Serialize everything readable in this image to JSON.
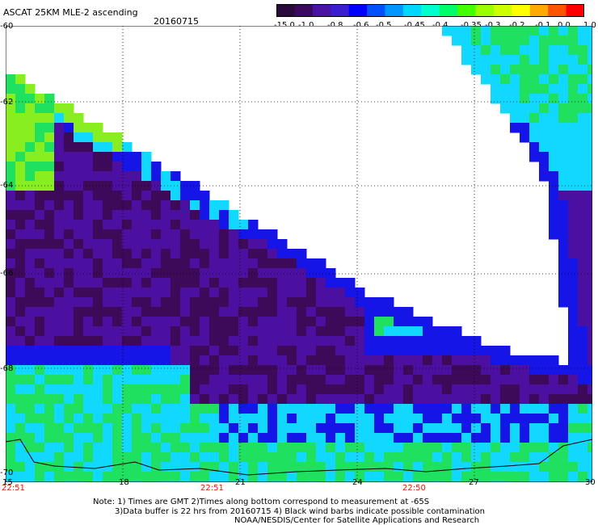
{
  "header": {
    "title": "ASCAT 25KM MLE-2 ascending",
    "date": "20160715"
  },
  "colorbar": {
    "labels": [
      "-15.0",
      "-1.0",
      "-0.8",
      "-0.6",
      "-0.5",
      "-0.45",
      "-0.4",
      "-0.35",
      "-0.3",
      "-0.2",
      "-0.1",
      "0.0",
      "1.0"
    ],
    "colors": [
      "#2a0a3a",
      "#3b0a5e",
      "#4a12a0",
      "#3a1ed0",
      "#0000ff",
      "#0050ff",
      "#0096ff",
      "#00d8ff",
      "#00ffcc",
      "#00ff66",
      "#44ff00",
      "#99ff00",
      "#ccff00",
      "#ffff00",
      "#ffaa00",
      "#ff5500",
      "#ff0000"
    ]
  },
  "axes": {
    "y_labels": [
      "-60",
      "-62",
      "-64",
      "-66",
      "-68",
      "-70"
    ],
    "x_labels": [
      "15",
      "18",
      "21",
      "24",
      "27",
      "30"
    ],
    "time_labels": [
      "22:51",
      "22:51",
      "22:50"
    ]
  },
  "map": {
    "x_range": [
      15,
      30
    ],
    "y_range": [
      -70,
      -60
    ],
    "palette": {
      "no_data": "#ffffff",
      "dark_purple": "#3d0a5a",
      "purple": "#4b10a0",
      "blue": "#1515e8",
      "cyan": "#10d8ff",
      "green": "#20e060",
      "lime": "#88ee20"
    }
  },
  "notes": {
    "line1": "Note: 1) Times are GMT 2)Times along bottom correspond to measurement at -65S",
    "line2": "3)Data buffer is 22 hrs from 20160715 4) Black wind barbs indicate possible contamination",
    "line3": "NOAA/NESDIS/Center for Satellite Applications and Research"
  }
}
